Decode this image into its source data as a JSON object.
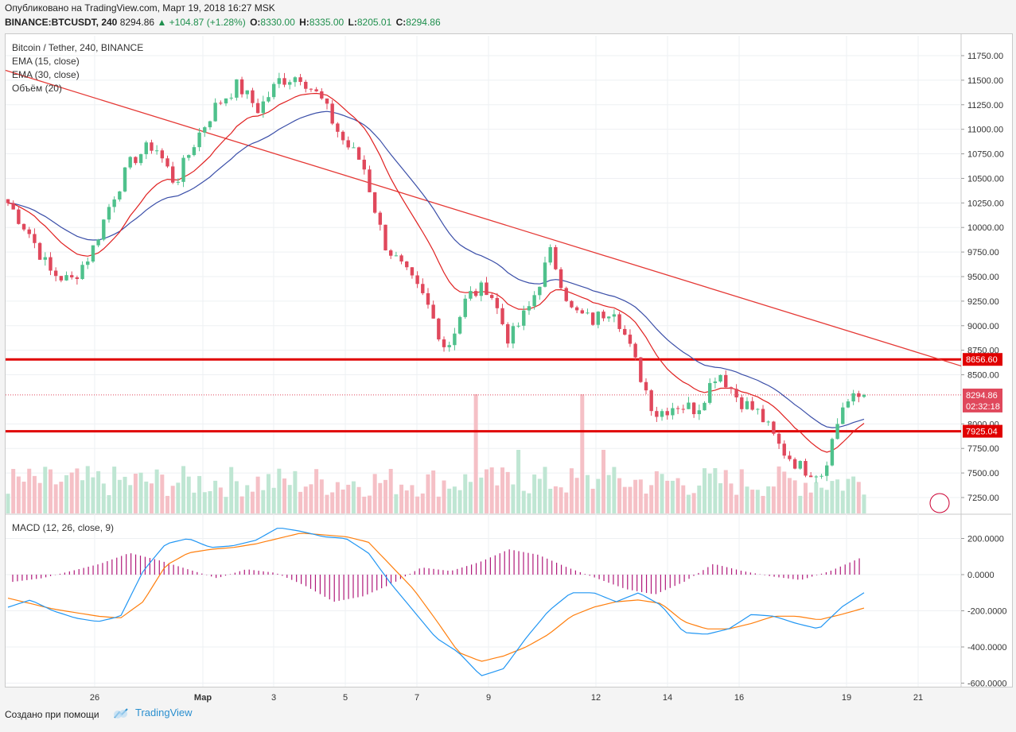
{
  "header": {
    "published": "Опубликовано на TradingView.com, Март 19, 2018 16:27 MSK",
    "symbol": "BINANCE:BTCUSDT, 240",
    "last": "8294.86",
    "change": "▲ +104.87 (+1.28%)",
    "o_label": "O:",
    "o": "8330.00",
    "h_label": "H:",
    "h": "8335.00",
    "l_label": "L:",
    "l": "8205.01",
    "c_label": "C:",
    "c": "8294.86"
  },
  "legend": {
    "title": "Bitcoin / Tether, 240, BINANCE",
    "ema15": "EMA (15, close)",
    "ema30": "EMA (30, close)",
    "volume": "Объём (20)",
    "macd": "MACD (12, 26, close, 9)"
  },
  "footer": {
    "created": "Создано при помощи",
    "brand": "TradingView"
  },
  "colors": {
    "up": "#4fc18c",
    "down": "#e0485c",
    "ema15": "#e02020",
    "ema30": "#3a4ea8",
    "trendline": "#e53935",
    "level": "#e00000",
    "macd": "#2196f3",
    "signal": "#ff7f0e",
    "hist": "#b0197a"
  },
  "chart_data": [
    {
      "type": "candlestick",
      "title": "Bitcoin / Tether, 240, BINANCE",
      "x_ticks": [
        "26",
        "Мар",
        "3",
        "5",
        "7",
        "9",
        "12",
        "14",
        "16",
        "19",
        "21"
      ],
      "y_ticks": [
        "11750.00",
        "11500.00",
        "11250.00",
        "11000.00",
        "10750.00",
        "10500.00",
        "10250.00",
        "10000.00",
        "9750.00",
        "9500.00",
        "9250.00",
        "9000.00",
        "8750.00",
        "8500.00",
        "8000.00",
        "7750.00",
        "7500.00",
        "7250.00"
      ],
      "ylim": [
        7100,
        11950
      ],
      "levels": [
        {
          "label": "8656.60",
          "value": 8656.6
        },
        {
          "label": "7925.04",
          "value": 7925.04
        }
      ],
      "last_price": {
        "label": "8294.86",
        "value": 8294.86,
        "countdown": "02:32:18"
      },
      "waypoints": [
        10250,
        9950,
        9550,
        9450,
        9750,
        10300,
        10700,
        10850,
        10450,
        10900,
        11250,
        11450,
        11200,
        11500,
        11550,
        11300,
        10900,
        10650,
        9850,
        9550,
        9250,
        8750,
        9300,
        9400,
        8850,
        9200,
        9750,
        9150,
        9050,
        9200,
        8650,
        8100,
        8200,
        8150,
        8550,
        8250,
        8100,
        7750,
        7550,
        7500,
        8200,
        8295
      ],
      "ema15_range": [
        10400,
        8050
      ],
      "trendline": {
        "from_value": 11600,
        "to_value": 8590
      }
    },
    {
      "type": "bar",
      "title": "Объём (20)"
    },
    {
      "type": "line",
      "title": "MACD (12, 26, close, 9)",
      "y_ticks": [
        "200.0000",
        "0.0000",
        "-200.0000",
        "-400.0000",
        "-600.0000"
      ],
      "ylim": [
        -600,
        280
      ],
      "macd": [
        -180,
        -140,
        -200,
        -240,
        -260,
        -230,
        20,
        170,
        200,
        150,
        160,
        190,
        260,
        240,
        210,
        200,
        120,
        -50,
        -200,
        -350,
        -430,
        -560,
        -520,
        -350,
        -200,
        -100,
        -100,
        -150,
        -100,
        -170,
        -320,
        -330,
        -300,
        -220,
        -230,
        -270,
        -300,
        -180,
        -100
      ],
      "signal": [
        -130,
        -160,
        -190,
        -210,
        -230,
        -240,
        -150,
        50,
        120,
        140,
        150,
        170,
        200,
        230,
        220,
        210,
        180,
        50,
        -80,
        -250,
        -430,
        -480,
        -450,
        -400,
        -330,
        -230,
        -180,
        -150,
        -140,
        -160,
        -260,
        -300,
        -300,
        -270,
        -230,
        -230,
        -250,
        -220,
        -185
      ],
      "hist": [
        -40,
        -20,
        20,
        60,
        120,
        80,
        30,
        -20,
        30,
        10,
        -60,
        -150,
        -120,
        -50,
        40,
        20,
        70,
        140,
        110,
        40,
        -20,
        -80,
        -110,
        -40,
        60,
        20,
        -10,
        -30,
        20,
        90
      ]
    }
  ]
}
